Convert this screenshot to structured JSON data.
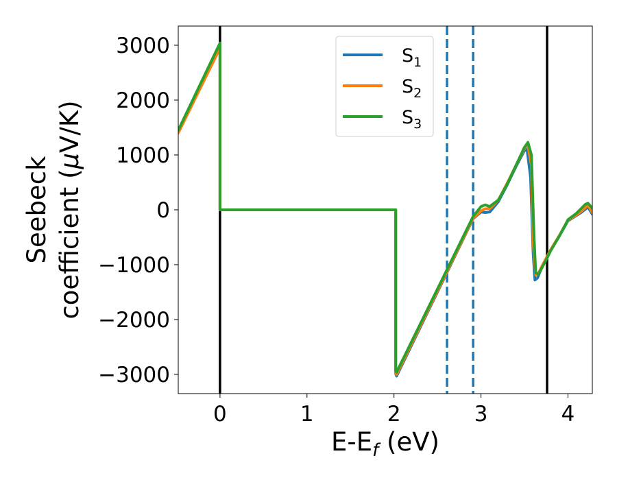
{
  "chart_data": {
    "type": "line",
    "title": "",
    "xlabel": "E-E",
    "xlabel_sub": "f",
    "xlabel_unit": " (eV)",
    "ylabel_line1": "Seebeck",
    "ylabel_line2": "coefficient  (",
    "ylabel_mu": "μ",
    "ylabel_unit": "V/K)",
    "xlim": [
      -0.48,
      4.28
    ],
    "ylim": [
      -3350,
      3350
    ],
    "xticks": [
      0,
      1,
      2,
      3,
      4
    ],
    "xtick_labels": [
      "0",
      "1",
      "2",
      "3",
      "4"
    ],
    "yticks": [
      -3000,
      -2000,
      -1000,
      0,
      1000,
      2000,
      3000
    ],
    "ytick_labels": [
      "−3000",
      "−2000",
      "−1000",
      "0",
      "1000",
      "2000",
      "3000"
    ],
    "grid": false,
    "legend_position": "top-center",
    "vlines": [
      {
        "x": 0.0,
        "style": "solid",
        "color": "#000000"
      },
      {
        "x": 3.76,
        "style": "solid",
        "color": "#000000"
      },
      {
        "x": 2.61,
        "style": "dashed",
        "color": "#1f77b4"
      },
      {
        "x": 2.91,
        "style": "dashed",
        "color": "#1f77b4"
      }
    ],
    "series": [
      {
        "name": "S1",
        "label_base": "S",
        "label_sub": "1",
        "color": "#1f77b4",
        "x": [
          -0.48,
          0.0,
          0.0,
          2.02,
          2.02,
          2.03,
          2.91,
          3.0,
          3.05,
          3.1,
          3.2,
          3.3,
          3.4,
          3.5,
          3.53,
          3.57,
          3.6,
          3.62,
          3.65,
          3.7,
          3.76,
          3.8,
          3.9,
          4.0,
          4.1,
          4.15,
          4.2,
          4.23,
          4.28
        ],
        "y": [
          1440,
          2990,
          0,
          0,
          -2990,
          -3030,
          -160,
          -40,
          -50,
          -40,
          150,
          450,
          780,
          1080,
          1100,
          600,
          -800,
          -1280,
          -1240,
          -1050,
          -860,
          -740,
          -480,
          -200,
          -100,
          -50,
          10,
          50,
          -80
        ]
      },
      {
        "name": "S2",
        "label_base": "S",
        "label_sub": "2",
        "color": "#ff7f0e",
        "x": [
          -0.48,
          0.0,
          0.0,
          2.02,
          2.02,
          2.03,
          2.91,
          3.0,
          3.05,
          3.1,
          3.2,
          3.3,
          3.4,
          3.5,
          3.54,
          3.58,
          3.6,
          3.63,
          3.66,
          3.7,
          3.76,
          3.8,
          3.9,
          4.0,
          4.1,
          4.15,
          4.2,
          4.23,
          4.28
        ],
        "y": [
          1400,
          2950,
          0,
          0,
          -2980,
          -3000,
          -150,
          -20,
          20,
          20,
          180,
          480,
          800,
          1120,
          1180,
          800,
          -600,
          -1190,
          -1160,
          -1030,
          -850,
          -730,
          -470,
          -190,
          -90,
          -30,
          40,
          90,
          -50
        ]
      },
      {
        "name": "S3",
        "label_base": "S",
        "label_sub": "3",
        "color": "#2ca02c",
        "x": [
          -0.48,
          0.0,
          0.0,
          2.02,
          2.02,
          2.03,
          2.91,
          3.0,
          3.05,
          3.1,
          3.2,
          3.3,
          3.4,
          3.5,
          3.54,
          3.58,
          3.61,
          3.63,
          3.66,
          3.7,
          3.76,
          3.8,
          3.9,
          4.0,
          4.1,
          4.15,
          4.2,
          4.23,
          4.28
        ],
        "y": [
          1450,
          3040,
          0,
          0,
          -2940,
          -2960,
          -120,
          60,
          90,
          60,
          180,
          460,
          800,
          1140,
          1230,
          1000,
          -500,
          -1150,
          -1170,
          -1060,
          -880,
          -750,
          -480,
          -180,
          -60,
          20,
          100,
          120,
          30
        ]
      }
    ]
  }
}
